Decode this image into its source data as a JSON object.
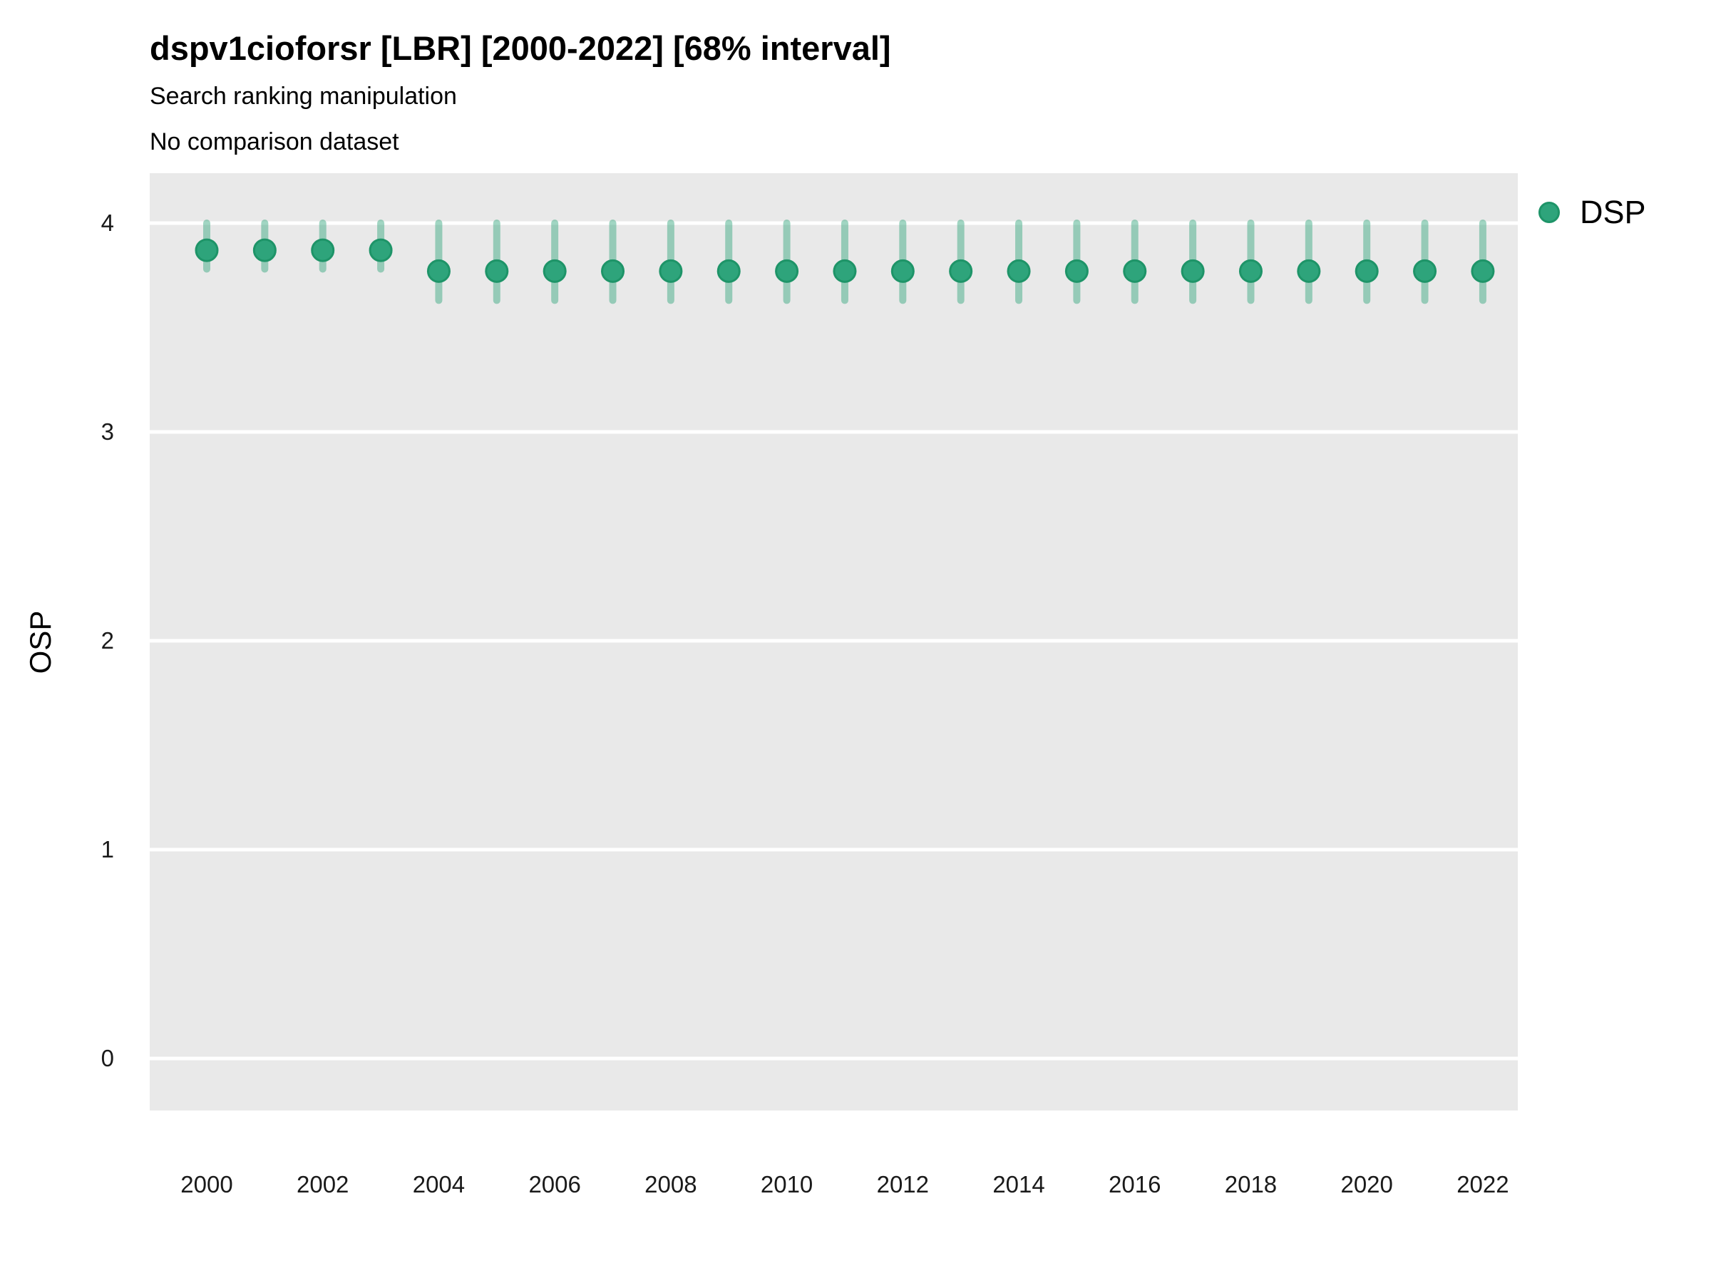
{
  "chart_data": {
    "type": "scatter",
    "variant": "pointrange",
    "title": "dspv1cioforsr [LBR] [2000-2022] [68% interval]",
    "subtitle": "Search ranking manipulation",
    "note": "No comparison dataset",
    "xlabel": "",
    "ylabel": "OSP",
    "interval_label": "68% interval",
    "x": [
      2000,
      2001,
      2002,
      2003,
      2004,
      2005,
      2006,
      2007,
      2008,
      2009,
      2010,
      2011,
      2012,
      2013,
      2014,
      2015,
      2016,
      2017,
      2018,
      2019,
      2020,
      2021,
      2022
    ],
    "series": [
      {
        "name": "DSP",
        "values": [
          3.87,
          3.87,
          3.87,
          3.87,
          3.77,
          3.77,
          3.77,
          3.77,
          3.77,
          3.77,
          3.77,
          3.77,
          3.77,
          3.77,
          3.77,
          3.77,
          3.77,
          3.77,
          3.77,
          3.77,
          3.77,
          3.77,
          3.77
        ],
        "lower": [
          3.78,
          3.78,
          3.78,
          3.78,
          3.63,
          3.63,
          3.63,
          3.63,
          3.63,
          3.63,
          3.63,
          3.63,
          3.63,
          3.63,
          3.63,
          3.63,
          3.63,
          3.63,
          3.63,
          3.63,
          3.63,
          3.63,
          3.63
        ],
        "upper": [
          4.0,
          4.0,
          4.0,
          4.0,
          4.0,
          4.0,
          4.0,
          4.0,
          4.0,
          4.0,
          4.0,
          4.0,
          4.0,
          4.0,
          4.0,
          4.0,
          4.0,
          4.0,
          4.0,
          4.0,
          4.0,
          4.0,
          4.0
        ]
      }
    ],
    "xticks": [
      2000,
      2002,
      2004,
      2006,
      2008,
      2010,
      2012,
      2014,
      2016,
      2018,
      2020,
      2022
    ],
    "yticks": [
      0,
      1,
      2,
      3,
      4
    ],
    "ylim": [
      -0.25,
      4.24
    ],
    "grid": "horizontal-major-only",
    "legend_position": "right"
  },
  "colors": {
    "point_fill": "#2EA47B",
    "point_stroke": "#1E9468",
    "interval": "rgba(46,164,123,0.45)",
    "gridline": "#ffffff",
    "panel_bg": "#e9e9e9",
    "text": "#000000"
  }
}
